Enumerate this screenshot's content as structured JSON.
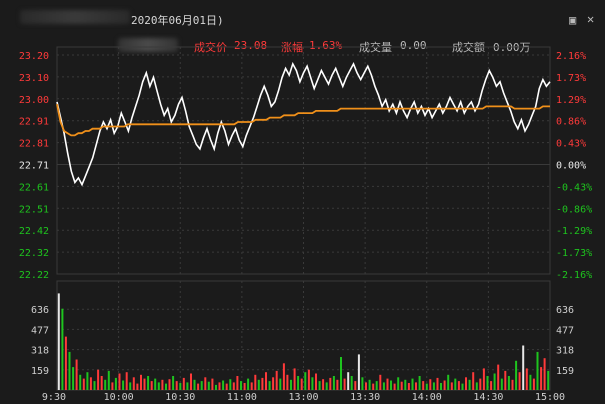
{
  "title": "2020年06月01日)",
  "info": {
    "price_label": "成交价",
    "price_value": "23.08",
    "change_label": "涨幅",
    "change_value": "1.63%",
    "volume_label": "成交量",
    "volume_value": "0.00",
    "amount_label": "成交额",
    "amount_value": "0.00万"
  },
  "colors": {
    "up": "#ff3a3a",
    "down": "#1ec41e",
    "neutral": "#e8e8e8",
    "price_line": "#ffffff",
    "avg_line": "#f0901a",
    "grid": "#3a3a3a"
  },
  "icons": [
    "restore-icon",
    "close-icon"
  ],
  "chart_data": {
    "type": "line",
    "x_tick_labels": [
      "9:30",
      "10:00",
      "10:30",
      "11:00",
      "13:00",
      "13:30",
      "14:00",
      "14:30",
      "15:00"
    ],
    "price_ticks": [
      "23.20",
      "23.10",
      "23.00",
      "22.91",
      "22.81",
      "22.71",
      "22.61",
      "22.51",
      "22.42",
      "22.32",
      "22.22"
    ],
    "pct_ticks": [
      "2.16%",
      "1.73%",
      "1.29%",
      "0.86%",
      "0.43%",
      "0.00%",
      "-0.43%",
      "-0.86%",
      "-1.29%",
      "-1.73%",
      "-2.16%"
    ],
    "volume_ticks": [
      "636",
      "477",
      "318",
      "159"
    ],
    "ylim": [
      22.22,
      23.2
    ],
    "volume_ylim": [
      0,
      795
    ],
    "series": [
      {
        "values": [
          22.99,
          22.92,
          22.85,
          22.76,
          22.68,
          22.63,
          22.65,
          22.62,
          22.66,
          22.7,
          22.74,
          22.8,
          22.86,
          22.9,
          22.87,
          22.91,
          22.85,
          22.88,
          22.94,
          22.9,
          22.86,
          22.92,
          22.97,
          23.02,
          23.08,
          23.12,
          23.06,
          23.1,
          23.04,
          22.98,
          22.93,
          22.96,
          22.9,
          22.93,
          22.98,
          23.01,
          22.95,
          22.88,
          22.84,
          22.8,
          22.78,
          22.83,
          22.87,
          22.82,
          22.78,
          22.85,
          22.9,
          22.86,
          22.8,
          22.84,
          22.87,
          22.82,
          22.79,
          22.84,
          22.88,
          22.92,
          22.97,
          23.02,
          23.06,
          23.02,
          22.97,
          22.99,
          23.04,
          23.1,
          23.14,
          23.11,
          23.16,
          23.13,
          23.08,
          23.12,
          23.15,
          23.1,
          23.05,
          23.09,
          23.13,
          23.1,
          23.07,
          23.11,
          23.14,
          23.1,
          23.06,
          23.1,
          23.13,
          23.16,
          23.12,
          23.09,
          23.12,
          23.15,
          23.11,
          23.06,
          23.02,
          22.97,
          23.0,
          22.95,
          22.98,
          22.94,
          22.99,
          22.95,
          22.92,
          22.96,
          22.99,
          22.94,
          22.97,
          22.93,
          22.96,
          22.92,
          22.95,
          22.98,
          22.94,
          22.97,
          23.01,
          22.98,
          22.95,
          22.99,
          22.94,
          22.97,
          22.99,
          22.95,
          22.98,
          23.04,
          23.09,
          23.13,
          23.1,
          23.06,
          23.08,
          23.03,
          22.99,
          22.95,
          22.9,
          22.87,
          22.91,
          22.86,
          22.89,
          22.93,
          22.97,
          23.05,
          23.09,
          23.06,
          23.08
        ]
      },
      {
        "values": [
          22.98,
          22.9,
          22.86,
          22.85,
          22.84,
          22.84,
          22.85,
          22.85,
          22.86,
          22.86,
          22.87,
          22.87,
          22.87,
          22.88,
          22.88,
          22.88,
          22.88,
          22.88,
          22.88,
          22.88,
          22.89,
          22.89,
          22.89,
          22.89,
          22.89,
          22.89,
          22.89,
          22.89,
          22.89,
          22.89,
          22.89,
          22.89,
          22.89,
          22.89,
          22.89,
          22.89,
          22.89,
          22.89,
          22.89,
          22.89,
          22.89,
          22.89,
          22.89,
          22.89,
          22.89,
          22.89,
          22.89,
          22.89,
          22.89,
          22.89,
          22.89,
          22.9,
          22.9,
          22.9,
          22.9,
          22.9,
          22.91,
          22.91,
          22.91,
          22.91,
          22.92,
          22.92,
          22.92,
          22.92,
          22.93,
          22.93,
          22.93,
          22.93,
          22.94,
          22.94,
          22.94,
          22.94,
          22.94,
          22.95,
          22.95,
          22.95,
          22.95,
          22.95,
          22.95,
          22.95,
          22.96,
          22.96,
          22.96,
          22.96,
          22.96,
          22.96,
          22.96,
          22.96,
          22.96,
          22.96,
          22.96,
          22.96,
          22.96,
          22.96,
          22.96,
          22.96,
          22.96,
          22.96,
          22.96,
          22.96,
          22.96,
          22.96,
          22.96,
          22.96,
          22.96,
          22.96,
          22.96,
          22.96,
          22.96,
          22.96,
          22.96,
          22.96,
          22.96,
          22.96,
          22.96,
          22.96,
          22.96,
          22.96,
          22.96,
          22.96,
          22.96,
          22.97,
          22.97,
          22.97,
          22.97,
          22.97,
          22.97,
          22.97,
          22.97,
          22.96,
          22.96,
          22.96,
          22.96,
          22.96,
          22.96,
          22.96,
          22.96,
          22.97,
          22.97,
          22.97
        ]
      }
    ],
    "volume": [
      {
        "v": 760,
        "d": "neutral"
      },
      {
        "v": 640,
        "d": "down"
      },
      {
        "v": 420,
        "d": "up"
      },
      {
        "v": 300,
        "d": "down"
      },
      {
        "v": 180,
        "d": "down"
      },
      {
        "v": 240,
        "d": "up"
      },
      {
        "v": 120,
        "d": "down"
      },
      {
        "v": 90,
        "d": "up"
      },
      {
        "v": 140,
        "d": "down"
      },
      {
        "v": 100,
        "d": "up"
      },
      {
        "v": 70,
        "d": "down"
      },
      {
        "v": 160,
        "d": "up"
      },
      {
        "v": 110,
        "d": "up"
      },
      {
        "v": 80,
        "d": "down"
      },
      {
        "v": 150,
        "d": "down"
      },
      {
        "v": 60,
        "d": "up"
      },
      {
        "v": 95,
        "d": "down"
      },
      {
        "v": 130,
        "d": "up"
      },
      {
        "v": 75,
        "d": "down"
      },
      {
        "v": 140,
        "d": "up"
      },
      {
        "v": 60,
        "d": "down"
      },
      {
        "v": 100,
        "d": "up"
      },
      {
        "v": 50,
        "d": "up"
      },
      {
        "v": 120,
        "d": "up"
      },
      {
        "v": 90,
        "d": "up"
      },
      {
        "v": 110,
        "d": "down"
      },
      {
        "v": 70,
        "d": "up"
      },
      {
        "v": 90,
        "d": "down"
      },
      {
        "v": 60,
        "d": "down"
      },
      {
        "v": 80,
        "d": "up"
      },
      {
        "v": 50,
        "d": "down"
      },
      {
        "v": 85,
        "d": "up"
      },
      {
        "v": 110,
        "d": "down"
      },
      {
        "v": 70,
        "d": "up"
      },
      {
        "v": 55,
        "d": "down"
      },
      {
        "v": 95,
        "d": "up"
      },
      {
        "v": 60,
        "d": "down"
      },
      {
        "v": 130,
        "d": "up"
      },
      {
        "v": 80,
        "d": "down"
      },
      {
        "v": 50,
        "d": "up"
      },
      {
        "v": 70,
        "d": "down"
      },
      {
        "v": 100,
        "d": "up"
      },
      {
        "v": 65,
        "d": "down"
      },
      {
        "v": 90,
        "d": "up"
      },
      {
        "v": 40,
        "d": "down"
      },
      {
        "v": 60,
        "d": "up"
      },
      {
        "v": 75,
        "d": "down"
      },
      {
        "v": 50,
        "d": "up"
      },
      {
        "v": 85,
        "d": "down"
      },
      {
        "v": 60,
        "d": "up"
      },
      {
        "v": 110,
        "d": "up"
      },
      {
        "v": 70,
        "d": "down"
      },
      {
        "v": 55,
        "d": "up"
      },
      {
        "v": 90,
        "d": "down"
      },
      {
        "v": 60,
        "d": "up"
      },
      {
        "v": 120,
        "d": "up"
      },
      {
        "v": 80,
        "d": "down"
      },
      {
        "v": 95,
        "d": "up"
      },
      {
        "v": 140,
        "d": "up"
      },
      {
        "v": 70,
        "d": "down"
      },
      {
        "v": 100,
        "d": "up"
      },
      {
        "v": 150,
        "d": "up"
      },
      {
        "v": 90,
        "d": "down"
      },
      {
        "v": 210,
        "d": "up"
      },
      {
        "v": 120,
        "d": "up"
      },
      {
        "v": 80,
        "d": "down"
      },
      {
        "v": 170,
        "d": "up"
      },
      {
        "v": 110,
        "d": "down"
      },
      {
        "v": 90,
        "d": "up"
      },
      {
        "v": 140,
        "d": "down"
      },
      {
        "v": 160,
        "d": "up"
      },
      {
        "v": 100,
        "d": "down"
      },
      {
        "v": 130,
        "d": "up"
      },
      {
        "v": 70,
        "d": "down"
      },
      {
        "v": 85,
        "d": "up"
      },
      {
        "v": 60,
        "d": "down"
      },
      {
        "v": 95,
        "d": "up"
      },
      {
        "v": 110,
        "d": "down"
      },
      {
        "v": 80,
        "d": "up"
      },
      {
        "v": 260,
        "d": "down"
      },
      {
        "v": 90,
        "d": "up"
      },
      {
        "v": 140,
        "d": "neutral"
      },
      {
        "v": 110,
        "d": "down"
      },
      {
        "v": 70,
        "d": "up"
      },
      {
        "v": 280,
        "d": "neutral"
      },
      {
        "v": 100,
        "d": "down"
      },
      {
        "v": 60,
        "d": "up"
      },
      {
        "v": 80,
        "d": "down"
      },
      {
        "v": 50,
        "d": "up"
      },
      {
        "v": 70,
        "d": "down"
      },
      {
        "v": 120,
        "d": "up"
      },
      {
        "v": 60,
        "d": "down"
      },
      {
        "v": 90,
        "d": "up"
      },
      {
        "v": 75,
        "d": "down"
      },
      {
        "v": 50,
        "d": "up"
      },
      {
        "v": 100,
        "d": "down"
      },
      {
        "v": 65,
        "d": "up"
      },
      {
        "v": 80,
        "d": "down"
      },
      {
        "v": 55,
        "d": "up"
      },
      {
        "v": 90,
        "d": "down"
      },
      {
        "v": 60,
        "d": "up"
      },
      {
        "v": 110,
        "d": "down"
      },
      {
        "v": 70,
        "d": "up"
      },
      {
        "v": 50,
        "d": "down"
      },
      {
        "v": 85,
        "d": "up"
      },
      {
        "v": 60,
        "d": "down"
      },
      {
        "v": 95,
        "d": "up"
      },
      {
        "v": 55,
        "d": "down"
      },
      {
        "v": 75,
        "d": "up"
      },
      {
        "v": 120,
        "d": "down"
      },
      {
        "v": 60,
        "d": "up"
      },
      {
        "v": 90,
        "d": "down"
      },
      {
        "v": 70,
        "d": "up"
      },
      {
        "v": 50,
        "d": "down"
      },
      {
        "v": 100,
        "d": "up"
      },
      {
        "v": 80,
        "d": "down"
      },
      {
        "v": 140,
        "d": "up"
      },
      {
        "v": 60,
        "d": "down"
      },
      {
        "v": 90,
        "d": "up"
      },
      {
        "v": 170,
        "d": "up"
      },
      {
        "v": 110,
        "d": "down"
      },
      {
        "v": 70,
        "d": "up"
      },
      {
        "v": 130,
        "d": "down"
      },
      {
        "v": 200,
        "d": "up"
      },
      {
        "v": 90,
        "d": "down"
      },
      {
        "v": 150,
        "d": "up"
      },
      {
        "v": 110,
        "d": "down"
      },
      {
        "v": 80,
        "d": "up"
      },
      {
        "v": 230,
        "d": "down"
      },
      {
        "v": 140,
        "d": "up"
      },
      {
        "v": 350,
        "d": "neutral"
      },
      {
        "v": 170,
        "d": "up"
      },
      {
        "v": 120,
        "d": "down"
      },
      {
        "v": 90,
        "d": "up"
      },
      {
        "v": 300,
        "d": "down"
      },
      {
        "v": 180,
        "d": "up"
      },
      {
        "v": 250,
        "d": "up"
      },
      {
        "v": 150,
        "d": "down"
      }
    ]
  }
}
